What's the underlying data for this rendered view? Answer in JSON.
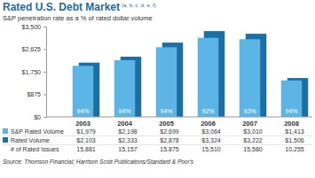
{
  "chart_data": {
    "type": "bar",
    "title": "Rated U.S. Debt Market",
    "title_note": "(a, b, c, d, e, f)",
    "subtitle": "S&P penetration rate as a % of rated dollar volume",
    "categories": [
      "2003",
      "2004",
      "2005",
      "2006",
      "2007",
      "2008"
    ],
    "series": [
      {
        "name": "S&P Rated Volume",
        "color": "#5cb5e4",
        "values": [
          1979,
          2198,
          2699,
          3064,
          3010,
          1413
        ],
        "value_labels": [
          "$1,979",
          "$2,198",
          "$2,699",
          "$3,064",
          "$3,010",
          "$1,413"
        ]
      },
      {
        "name": "Rated Volume",
        "color": "#1c6ea6",
        "values": [
          2103,
          2333,
          2878,
          3324,
          3222,
          1506
        ],
        "value_labels": [
          "$2,103",
          "$2,333",
          "$2,878",
          "$3,324",
          "$3,222",
          "$1,506"
        ]
      }
    ],
    "penetration_rate": {
      "values": [
        94,
        94,
        94,
        92,
        93,
        94
      ],
      "value_labels": [
        "94%",
        "94%",
        "94%",
        "92%",
        "93%",
        "94%"
      ]
    },
    "rated_issues": {
      "name": "# of Rated Issues",
      "values": [
        15881,
        15157,
        15875,
        15510,
        15580,
        10255
      ],
      "value_labels": [
        "15,881",
        "15,157",
        "15,875",
        "15,510",
        "15,580",
        "10,255"
      ]
    },
    "ylim": [
      0,
      3500
    ],
    "yticks": [
      {
        "value": 0,
        "label": "$0"
      },
      {
        "value": 875,
        "label": "$875"
      },
      {
        "value": 1750,
        "label": "$1,750"
      },
      {
        "value": 2625,
        "label": "$2,625"
      },
      {
        "value": 3500,
        "label": "$3,500"
      }
    ],
    "grid": false,
    "source": "Source: Thomson Financial; Harrison Scott Publications/Standard & Poor's"
  }
}
